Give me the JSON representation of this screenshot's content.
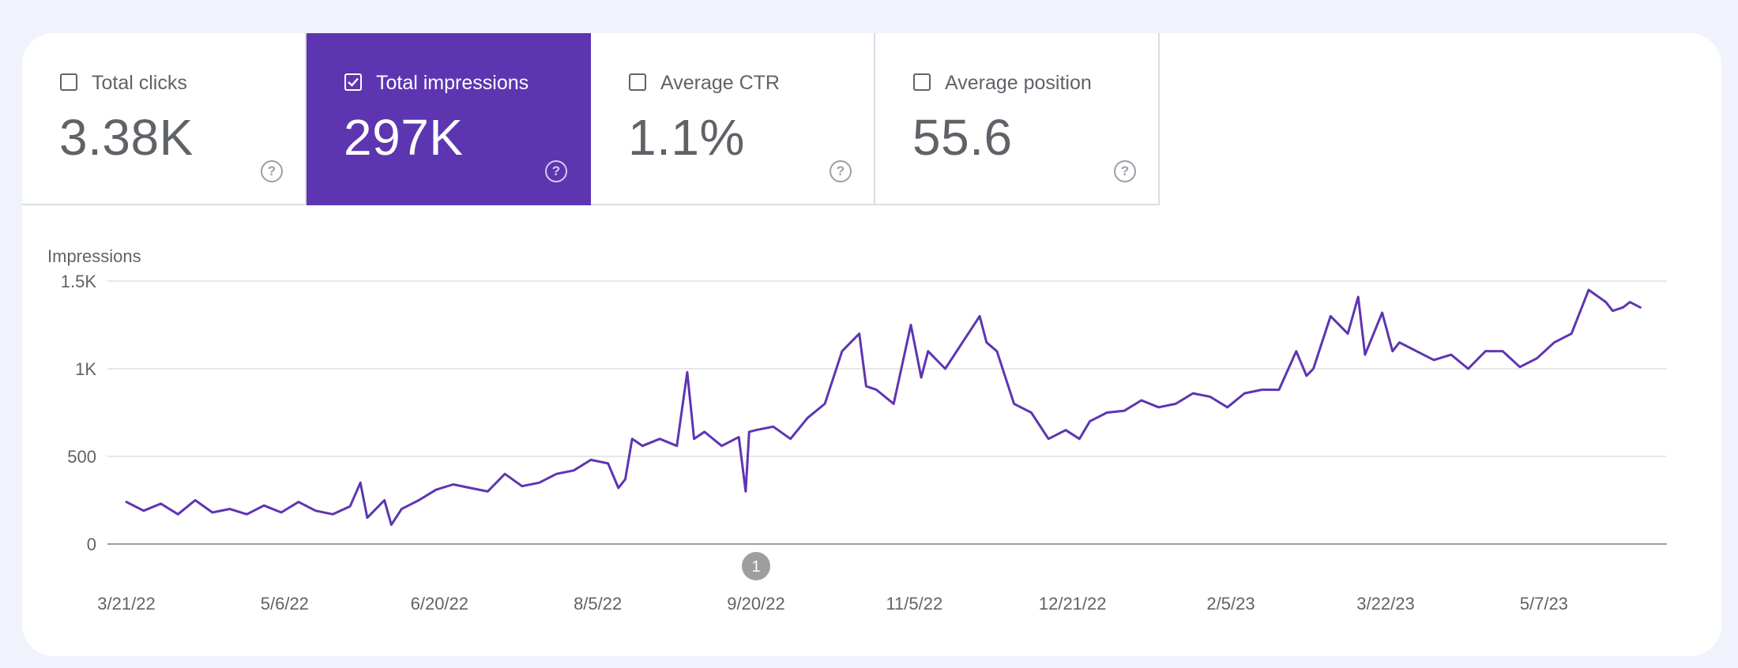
{
  "metrics": [
    {
      "label": "Total clicks",
      "value": "3.38K",
      "selected": false,
      "help": "?"
    },
    {
      "label": "Total impressions",
      "value": "297K",
      "selected": true,
      "help": "?"
    },
    {
      "label": "Average CTR",
      "value": "1.1%",
      "selected": false,
      "help": "?"
    },
    {
      "label": "Average position",
      "value": "55.6",
      "selected": false,
      "help": "?"
    }
  ],
  "colors": {
    "accent": "#5e35b1",
    "line": "#5e35b1",
    "grid": "#e0e0e0",
    "text": "#5f6368",
    "annotation": "#9e9e9e"
  },
  "annotation": {
    "label": "1",
    "x": "9/20/22"
  },
  "chart_data": {
    "type": "line",
    "ylabel": "Impressions",
    "ylim": [
      0,
      1500
    ],
    "yticks": [
      0,
      500,
      1000,
      1500
    ],
    "yticklabels": [
      "0",
      "500",
      "1K",
      "1.5K"
    ],
    "xlim": [
      "3/21/22",
      "6/6/23"
    ],
    "xticklabels": [
      "3/21/22",
      "5/6/22",
      "6/20/22",
      "8/5/22",
      "9/20/22",
      "11/5/22",
      "12/21/22",
      "2/5/23",
      "3/22/23",
      "5/7/23"
    ],
    "grid": true,
    "series": [
      {
        "x": [
          "3/21/22",
          "3/26/22",
          "3/31/22",
          "4/5/22",
          "4/10/22",
          "4/15/22",
          "4/20/22",
          "4/25/22",
          "4/30/22",
          "5/5/22",
          "5/10/22",
          "5/15/22",
          "5/20/22",
          "5/25/22",
          "5/28/22",
          "5/30/22",
          "6/4/22",
          "6/6/22",
          "6/9/22",
          "6/14/22",
          "6/19/22",
          "6/24/22",
          "6/29/22",
          "7/4/22",
          "7/9/22",
          "7/14/22",
          "7/19/22",
          "7/24/22",
          "7/29/22",
          "8/3/22",
          "8/8/22",
          "8/11/22",
          "8/13/22",
          "8/15/22",
          "8/18/22",
          "8/23/22",
          "8/28/22",
          "8/31/22",
          "9/2/22",
          "9/5/22",
          "9/10/22",
          "9/15/22",
          "9/17/22",
          "9/18/22",
          "9/20/22",
          "9/25/22",
          "9/30/22",
          "10/5/22",
          "10/10/22",
          "10/15/22",
          "10/20/22",
          "10/22/22",
          "10/25/22",
          "10/30/22",
          "11/4/22",
          "11/7/22",
          "11/9/22",
          "11/14/22",
          "11/19/22",
          "11/24/22",
          "11/26/22",
          "11/29/22",
          "12/4/22",
          "12/9/22",
          "12/14/22",
          "12/19/22",
          "12/23/22",
          "12/26/22",
          "12/31/22",
          "1/5/23",
          "1/10/23",
          "1/15/23",
          "1/20/23",
          "1/25/23",
          "1/30/23",
          "2/4/23",
          "2/9/23",
          "2/14/23",
          "2/19/23",
          "2/24/23",
          "2/27/23",
          "3/1/23",
          "3/6/23",
          "3/11/23",
          "3/14/23",
          "3/16/23",
          "3/21/23",
          "3/24/23",
          "3/26/23",
          "3/31/23",
          "4/5/23",
          "4/10/23",
          "4/15/23",
          "4/20/23",
          "4/25/23",
          "4/30/23",
          "5/5/23",
          "5/10/23",
          "5/15/23",
          "5/20/23",
          "5/25/23",
          "5/27/23",
          "5/30/23",
          "6/1/23",
          "6/4/23"
        ],
        "values": [
          240,
          190,
          230,
          170,
          250,
          180,
          200,
          170,
          220,
          180,
          240,
          190,
          170,
          215,
          350,
          150,
          250,
          110,
          200,
          250,
          310,
          340,
          320,
          300,
          400,
          330,
          350,
          400,
          420,
          480,
          460,
          320,
          370,
          600,
          560,
          600,
          560,
          980,
          600,
          640,
          560,
          610,
          300,
          640,
          650,
          670,
          600,
          720,
          800,
          1100,
          1200,
          900,
          880,
          800,
          1250,
          950,
          1100,
          1000,
          1150,
          1300,
          1150,
          1100,
          800,
          750,
          600,
          650,
          600,
          700,
          750,
          760,
          820,
          780,
          800,
          860,
          840,
          780,
          860,
          880,
          880,
          1100,
          960,
          1000,
          1300,
          1200,
          1410,
          1080,
          1320,
          1100,
          1150,
          1100,
          1050,
          1080,
          1000,
          1100,
          1100,
          1010,
          1060,
          1150,
          1200,
          1450,
          1380,
          1330,
          1350,
          1380,
          1350
        ]
      }
    ]
  }
}
